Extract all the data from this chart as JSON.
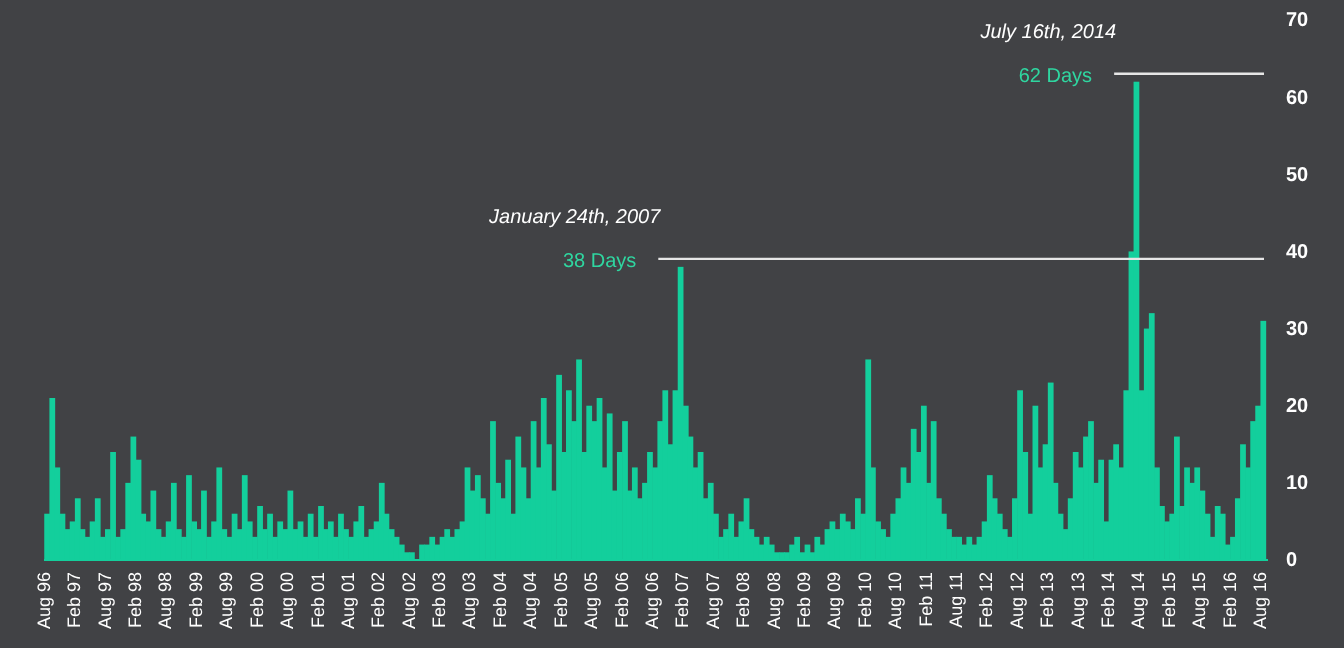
{
  "chart_data": {
    "type": "bar",
    "color": "#13cf9c",
    "x": [
      "1996-08",
      "1996-09",
      "1996-10",
      "1996-11",
      "1996-12",
      "1997-01",
      "1997-02",
      "1997-03",
      "1997-04",
      "1997-05",
      "1997-06",
      "1997-07",
      "1997-08",
      "1997-09",
      "1997-10",
      "1997-11",
      "1997-12",
      "1998-01",
      "1998-02",
      "1998-03",
      "1998-04",
      "1998-05",
      "1998-06",
      "1998-07",
      "1998-08",
      "1998-09",
      "1998-10",
      "1998-11",
      "1998-12",
      "1999-01",
      "1999-02",
      "1999-03",
      "1999-04",
      "1999-05",
      "1999-06",
      "1999-07",
      "1999-08",
      "1999-09",
      "1999-10",
      "1999-11",
      "1999-12",
      "2000-01",
      "2000-02",
      "2000-03",
      "2000-04",
      "2000-05",
      "2000-06",
      "2000-07",
      "2000-08",
      "2000-09",
      "2000-10",
      "2000-11",
      "2000-12",
      "2001-01",
      "2001-02",
      "2001-03",
      "2001-04",
      "2001-05",
      "2001-06",
      "2001-07",
      "2001-08",
      "2001-09",
      "2001-10",
      "2001-11",
      "2001-12",
      "2002-01",
      "2002-02",
      "2002-03",
      "2002-04",
      "2002-05",
      "2002-06",
      "2002-07",
      "2002-08",
      "2002-09",
      "2002-10",
      "2002-11",
      "2002-12",
      "2003-01",
      "2003-02",
      "2003-03",
      "2003-04",
      "2003-05",
      "2003-06",
      "2003-07",
      "2003-08",
      "2003-09",
      "2003-10",
      "2003-11",
      "2003-12",
      "2004-01",
      "2004-02",
      "2004-03",
      "2004-04",
      "2004-05",
      "2004-06",
      "2004-07",
      "2004-08",
      "2004-09",
      "2004-10",
      "2004-11",
      "2004-12",
      "2005-01",
      "2005-02",
      "2005-03",
      "2005-04",
      "2005-05",
      "2005-06",
      "2005-07",
      "2005-08",
      "2005-09",
      "2005-10",
      "2005-11",
      "2005-12",
      "2006-01",
      "2006-02",
      "2006-03",
      "2006-04",
      "2006-05",
      "2006-06",
      "2006-07",
      "2006-08",
      "2006-09",
      "2006-10",
      "2006-11",
      "2006-12",
      "2007-01",
      "2007-02",
      "2007-03",
      "2007-04",
      "2007-05",
      "2007-06",
      "2007-07",
      "2007-08",
      "2007-09",
      "2007-10",
      "2007-11",
      "2007-12",
      "2008-01",
      "2008-02",
      "2008-03",
      "2008-04",
      "2008-05",
      "2008-06",
      "2008-07",
      "2008-08",
      "2008-09",
      "2008-10",
      "2008-11",
      "2008-12",
      "2009-01",
      "2009-02",
      "2009-03",
      "2009-04",
      "2009-05",
      "2009-06",
      "2009-07",
      "2009-08",
      "2009-09",
      "2009-10",
      "2009-11",
      "2009-12",
      "2010-01",
      "2010-02",
      "2010-03",
      "2010-04",
      "2010-05",
      "2010-06",
      "2010-07",
      "2010-08",
      "2010-09",
      "2010-10",
      "2010-11",
      "2010-12",
      "2011-01",
      "2011-02",
      "2011-03",
      "2011-04",
      "2011-05",
      "2011-06",
      "2011-07",
      "2011-08",
      "2011-09",
      "2011-10",
      "2011-11",
      "2011-12",
      "2012-01",
      "2012-02",
      "2012-03",
      "2012-04",
      "2012-05",
      "2012-06",
      "2012-07",
      "2012-08",
      "2012-09",
      "2012-10",
      "2012-11",
      "2012-12",
      "2013-01",
      "2013-02",
      "2013-03",
      "2013-04",
      "2013-05",
      "2013-06",
      "2013-07",
      "2013-08",
      "2013-09",
      "2013-10",
      "2013-11",
      "2013-12",
      "2014-01",
      "2014-02",
      "2014-03",
      "2014-04",
      "2014-05",
      "2014-06",
      "2014-07",
      "2014-08",
      "2014-09",
      "2014-10",
      "2014-11",
      "2014-12",
      "2015-01",
      "2015-02",
      "2015-03",
      "2015-04",
      "2015-05",
      "2015-06",
      "2015-07",
      "2015-08",
      "2015-09",
      "2015-10",
      "2015-11",
      "2015-12",
      "2016-01",
      "2016-02",
      "2016-03",
      "2016-04",
      "2016-05",
      "2016-06",
      "2016-07",
      "2016-08"
    ],
    "values": [
      6,
      21,
      12,
      6,
      4,
      5,
      8,
      4,
      3,
      5,
      8,
      3,
      4,
      14,
      3,
      4,
      10,
      16,
      13,
      6,
      5,
      9,
      4,
      3,
      5,
      10,
      4,
      3,
      11,
      5,
      4,
      9,
      3,
      5,
      12,
      4,
      3,
      6,
      4,
      11,
      5,
      3,
      7,
      4,
      6,
      3,
      5,
      4,
      9,
      4,
      5,
      3,
      6,
      3,
      7,
      4,
      5,
      3,
      6,
      4,
      3,
      5,
      7,
      3,
      4,
      5,
      10,
      6,
      4,
      3,
      2,
      1,
      1,
      0,
      2,
      2,
      3,
      2,
      3,
      4,
      3,
      4,
      5,
      12,
      9,
      11,
      8,
      6,
      18,
      10,
      8,
      13,
      6,
      16,
      12,
      8,
      18,
      12,
      21,
      15,
      9,
      24,
      14,
      22,
      18,
      26,
      14,
      20,
      18,
      21,
      12,
      19,
      9,
      14,
      18,
      9,
      12,
      8,
      10,
      14,
      12,
      18,
      22,
      15,
      22,
      38,
      20,
      16,
      12,
      14,
      8,
      10,
      6,
      3,
      4,
      6,
      3,
      5,
      8,
      4,
      3,
      2,
      3,
      2,
      1,
      1,
      1,
      2,
      3,
      1,
      2,
      1,
      3,
      2,
      4,
      5,
      4,
      6,
      5,
      4,
      8,
      6,
      26,
      12,
      5,
      4,
      3,
      6,
      8,
      12,
      10,
      17,
      14,
      20,
      10,
      18,
      8,
      6,
      4,
      3,
      3,
      2,
      3,
      2,
      3,
      5,
      11,
      8,
      6,
      4,
      3,
      8,
      22,
      14,
      6,
      20,
      12,
      15,
      23,
      10,
      6,
      4,
      8,
      14,
      12,
      16,
      18,
      10,
      13,
      5,
      13,
      15,
      12,
      22,
      40,
      62,
      22,
      30,
      32,
      12,
      7,
      5,
      6,
      16,
      7,
      12,
      10,
      12,
      9,
      6,
      3,
      7,
      6,
      2,
      3,
      8,
      15,
      12,
      18,
      20,
      31
    ],
    "xlim": [
      "1996-07-15",
      "2016-08-31"
    ],
    "xticks": [
      {
        "value": "1996-08",
        "label": "Aug 96"
      },
      {
        "value": "1997-02",
        "label": "Feb 97"
      },
      {
        "value": "1997-08",
        "label": "Aug 97"
      },
      {
        "value": "1998-02",
        "label": "Feb 98"
      },
      {
        "value": "1998-08",
        "label": "Aug 98"
      },
      {
        "value": "1999-02",
        "label": "Feb 99"
      },
      {
        "value": "1999-08",
        "label": "Aug 99"
      },
      {
        "value": "2000-02",
        "label": "Feb 00"
      },
      {
        "value": "2000-08",
        "label": "Aug 00"
      },
      {
        "value": "2001-02",
        "label": "Feb 01"
      },
      {
        "value": "2001-08",
        "label": "Aug 01"
      },
      {
        "value": "2002-02",
        "label": "Feb 02"
      },
      {
        "value": "2002-08",
        "label": "Aug 02"
      },
      {
        "value": "2003-02",
        "label": "Feb 03"
      },
      {
        "value": "2003-08",
        "label": "Aug 03"
      },
      {
        "value": "2004-02",
        "label": "Feb 04"
      },
      {
        "value": "2004-08",
        "label": "Aug 04"
      },
      {
        "value": "2005-02",
        "label": "Feb 05"
      },
      {
        "value": "2005-08",
        "label": "Aug 05"
      },
      {
        "value": "2006-02",
        "label": "Feb 06"
      },
      {
        "value": "2006-08",
        "label": "Aug 06"
      },
      {
        "value": "2007-02",
        "label": "Feb 07"
      },
      {
        "value": "2007-08",
        "label": "Aug 07"
      },
      {
        "value": "2008-02",
        "label": "Feb 08"
      },
      {
        "value": "2008-08",
        "label": "Aug 08"
      },
      {
        "value": "2009-02",
        "label": "Feb 09"
      },
      {
        "value": "2009-08",
        "label": "Aug 09"
      },
      {
        "value": "2010-02",
        "label": "Feb 10"
      },
      {
        "value": "2010-08",
        "label": "Aug 10"
      },
      {
        "value": "2011-02",
        "label": "Feb 11"
      },
      {
        "value": "2011-08",
        "label": "Aug 11"
      },
      {
        "value": "2012-02",
        "label": "Feb 12"
      },
      {
        "value": "2012-08",
        "label": "Aug 12"
      },
      {
        "value": "2013-02",
        "label": "Feb 13"
      },
      {
        "value": "2013-08",
        "label": "Aug 13"
      },
      {
        "value": "2014-02",
        "label": "Feb 14"
      },
      {
        "value": "2014-08",
        "label": "Aug 14"
      },
      {
        "value": "2015-02",
        "label": "Feb 15"
      },
      {
        "value": "2015-08",
        "label": "Aug 15"
      },
      {
        "value": "2016-02",
        "label": "Feb 16"
      },
      {
        "value": "2016-08",
        "label": "Aug 16"
      }
    ],
    "ylim": [
      0,
      70
    ],
    "yticks": [
      0,
      10,
      20,
      30,
      40,
      50,
      60,
      70
    ],
    "annotations": [
      {
        "text": "January 24th, 2007",
        "x": "2007-01",
        "y": 38
      },
      {
        "text": "38 Days",
        "x": "2007-01",
        "y": 38
      },
      {
        "text": "July 16th, 2014",
        "x": "2014-07",
        "y": 62
      },
      {
        "text": "62 Days",
        "x": "2014-07",
        "y": 62
      }
    ]
  }
}
